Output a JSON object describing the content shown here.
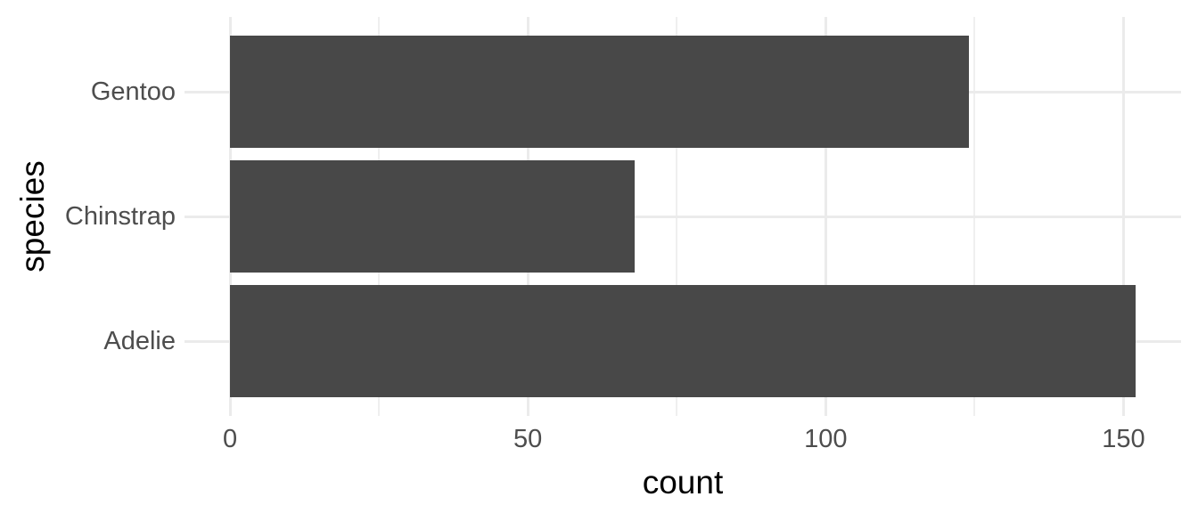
{
  "chart_data": {
    "type": "bar",
    "orientation": "horizontal",
    "title": "",
    "xlabel": "count",
    "ylabel": "species",
    "categories_top_to_bottom": [
      "Gentoo",
      "Chinstrap",
      "Adelie"
    ],
    "values": [
      124,
      68,
      152
    ],
    "x_ticks_major": [
      0,
      50,
      100,
      150
    ],
    "x_ticks_minor": [
      25,
      75,
      125
    ],
    "xlim_expanded": [
      -7.64,
      159.66
    ],
    "bar_width_fraction": 0.9,
    "grid": "major_and_minor_vertical_plus_major_horizontal",
    "legend": "none",
    "panel_background": "plain_white_theme_minimal",
    "colors": {
      "bar_fill": "#484848",
      "grid_major": "#EBEBEB",
      "grid_minor": "#EFEFEF",
      "tick_label": "#4D4D4D",
      "axis_title": "#000000",
      "background": "#FFFFFF"
    }
  }
}
